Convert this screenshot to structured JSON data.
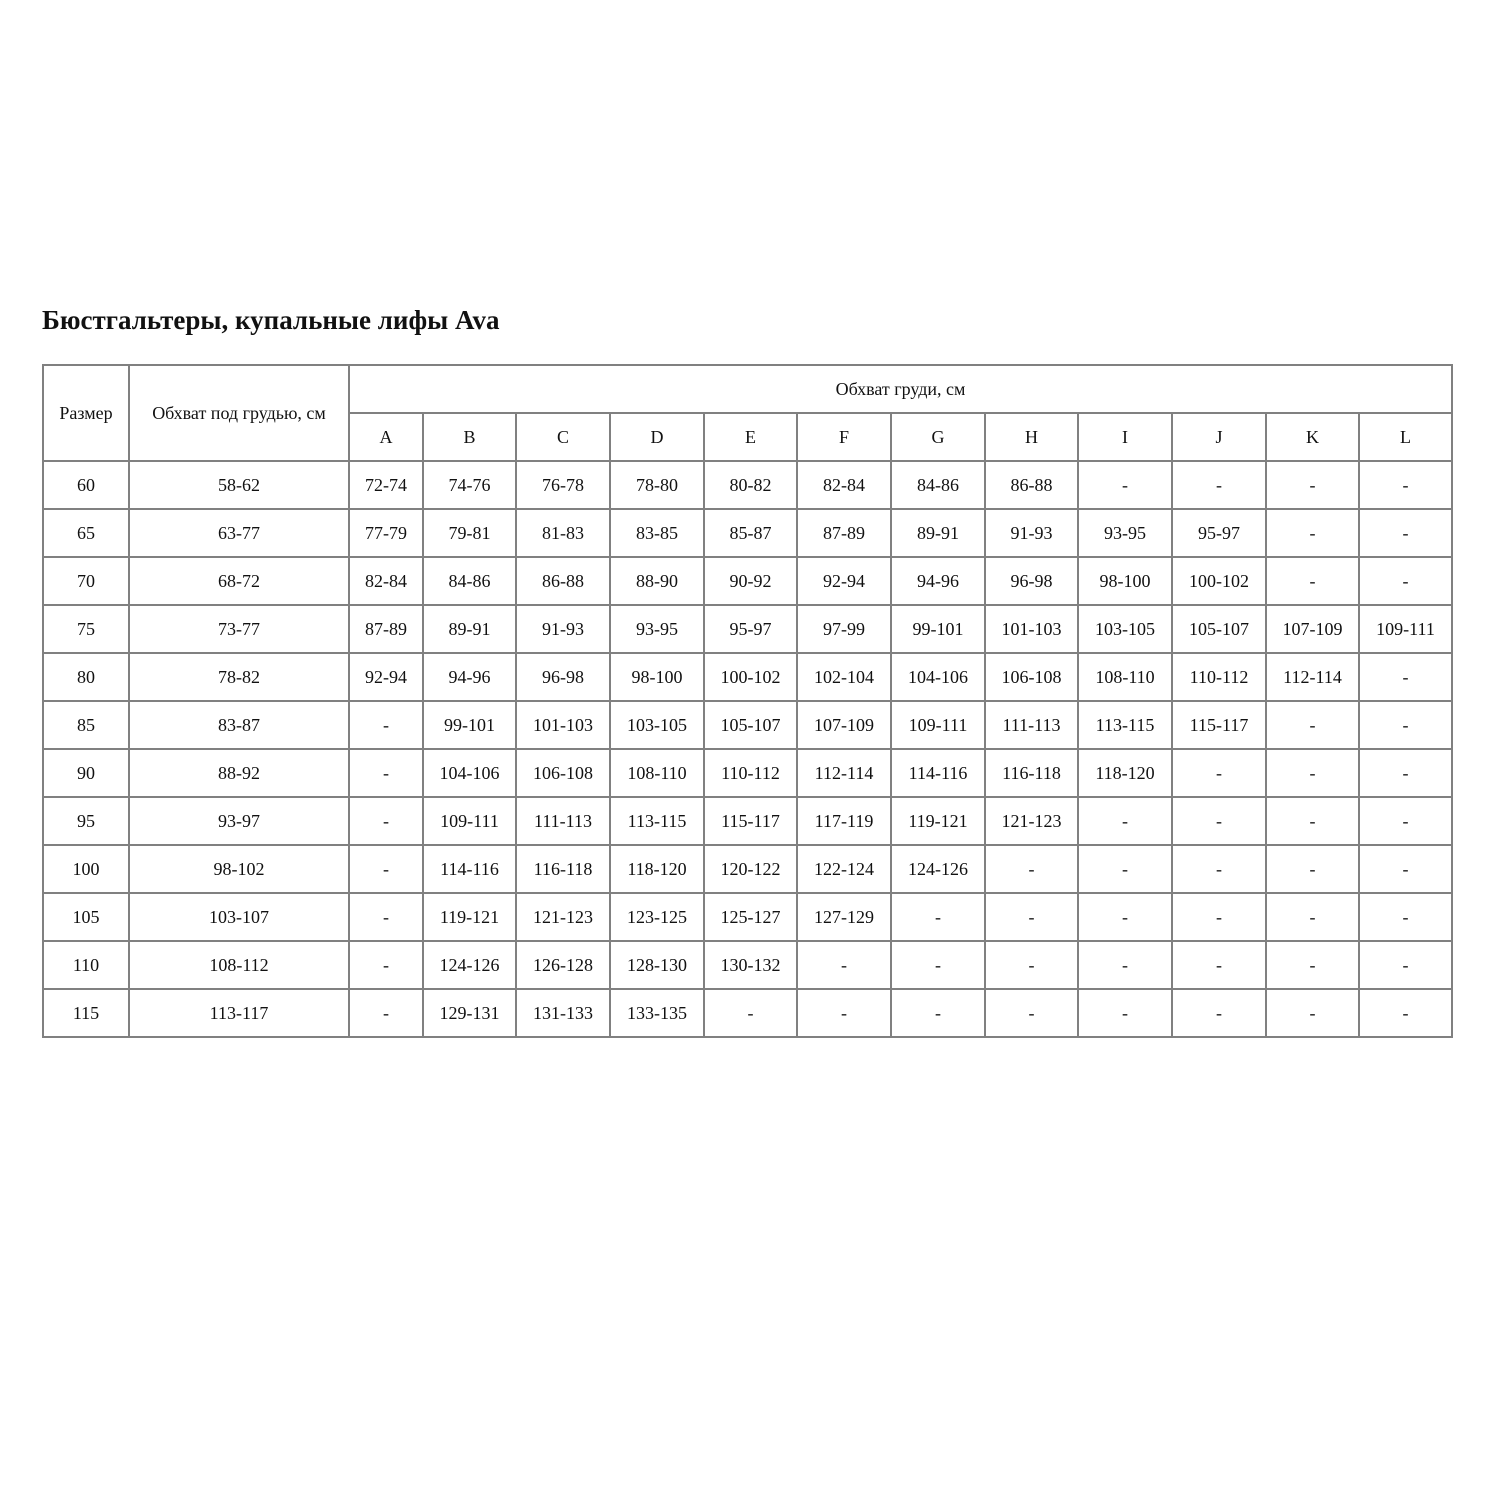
{
  "title": "Бюстгальтеры, купальные лифы Ava",
  "table": {
    "headers": {
      "size": "Размер",
      "underbust": "Обхват под грудью, см",
      "bust": "Обхват груди, см",
      "cups": [
        "A",
        "B",
        "C",
        "D",
        "E",
        "F",
        "G",
        "H",
        "I",
        "J",
        "K",
        "L"
      ]
    },
    "rows": [
      [
        "60",
        "58-62",
        "72-74",
        "74-76",
        "76-78",
        "78-80",
        "80-82",
        "82-84",
        "84-86",
        "86-88",
        "-",
        "-",
        "-",
        "-"
      ],
      [
        "65",
        "63-77",
        "77-79",
        "79-81",
        "81-83",
        "83-85",
        "85-87",
        "87-89",
        "89-91",
        "91-93",
        "93-95",
        "95-97",
        "-",
        "-"
      ],
      [
        "70",
        "68-72",
        "82-84",
        "84-86",
        "86-88",
        "88-90",
        "90-92",
        "92-94",
        "94-96",
        "96-98",
        "98-100",
        "100-102",
        "-",
        "-"
      ],
      [
        "75",
        "73-77",
        "87-89",
        "89-91",
        "91-93",
        "93-95",
        "95-97",
        "97-99",
        "99-101",
        "101-103",
        "103-105",
        "105-107",
        "107-109",
        "109-111"
      ],
      [
        "80",
        "78-82",
        "92-94",
        "94-96",
        "96-98",
        "98-100",
        "100-102",
        "102-104",
        "104-106",
        "106-108",
        "108-110",
        "110-112",
        "112-114",
        "-"
      ],
      [
        "85",
        "83-87",
        "-",
        "99-101",
        "101-103",
        "103-105",
        "105-107",
        "107-109",
        "109-111",
        "111-113",
        "113-115",
        "115-117",
        "-",
        "-"
      ],
      [
        "90",
        "88-92",
        "-",
        "104-106",
        "106-108",
        "108-110",
        "110-112",
        "112-114",
        "114-116",
        "116-118",
        "118-120",
        "-",
        "-",
        "-"
      ],
      [
        "95",
        "93-97",
        "-",
        "109-111",
        "111-113",
        "113-115",
        "115-117",
        "117-119",
        "119-121",
        "121-123",
        "-",
        "-",
        "-",
        "-"
      ],
      [
        "100",
        "98-102",
        "-",
        "114-116",
        "116-118",
        "118-120",
        "120-122",
        "122-124",
        "124-126",
        "-",
        "-",
        "-",
        "-",
        "-"
      ],
      [
        "105",
        "103-107",
        "-",
        "119-121",
        "121-123",
        "123-125",
        "125-127",
        "127-129",
        "-",
        "-",
        "-",
        "-",
        "-",
        "-"
      ],
      [
        "110",
        "108-112",
        "-",
        "124-126",
        "126-128",
        "128-130",
        "130-132",
        "-",
        "-",
        "-",
        "-",
        "-",
        "-",
        "-"
      ],
      [
        "115",
        "113-117",
        "-",
        "129-131",
        "131-133",
        "133-135",
        "-",
        "-",
        "-",
        "-",
        "-",
        "-",
        "-",
        "-"
      ]
    ]
  }
}
